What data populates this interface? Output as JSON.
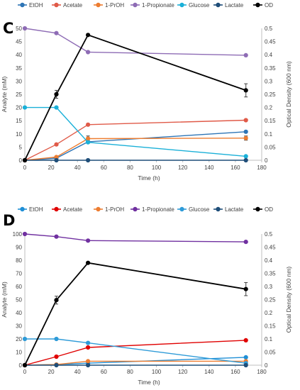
{
  "chart_data": [
    {
      "type": "line",
      "panel_label": "C",
      "xlabel": "Time (h)",
      "ylabel": "Analyte (mM)",
      "y2label": "Optical Density (600 nm)",
      "x_ticks": [
        0,
        20,
        40,
        60,
        80,
        100,
        120,
        140,
        160,
        180
      ],
      "y_ticks": [
        0,
        5,
        10,
        15,
        20,
        25,
        30,
        35,
        40,
        45,
        50
      ],
      "y2_ticks": [
        "0",
        "0.05",
        "0.1",
        "0.15",
        "0.2",
        "0.25",
        "0.3",
        "0.35",
        "0.4",
        "0.45",
        "0.5"
      ],
      "xlim": [
        0,
        180
      ],
      "ylim": [
        0,
        50
      ],
      "y2lim": [
        0,
        0.5
      ],
      "legend_position": "top",
      "series": [
        {
          "name": "EtOH",
          "color": "#2e75b6",
          "axis": "left",
          "x": [
            0,
            24,
            48,
            168
          ],
          "y": [
            0,
            0.8,
            7.0,
            10.8
          ],
          "err": [
            0,
            0,
            0,
            0
          ]
        },
        {
          "name": "Acetate",
          "color": "#e05a48",
          "axis": "left",
          "x": [
            0,
            24,
            48,
            168
          ],
          "y": [
            0,
            6.0,
            13.5,
            15.2
          ],
          "err": [
            0,
            0,
            0,
            0
          ]
        },
        {
          "name": "1-PrOH",
          "color": "#ed7d31",
          "axis": "left",
          "x": [
            0,
            24,
            48,
            168
          ],
          "y": [
            0,
            1.2,
            8.2,
            8.4
          ],
          "err": [
            0,
            0,
            1.0,
            0.8
          ]
        },
        {
          "name": "1-Propionate",
          "color": "#8e6cb5",
          "axis": "left",
          "x": [
            0,
            24,
            48,
            168
          ],
          "y": [
            50.0,
            48.2,
            41.0,
            39.8
          ],
          "err": [
            0,
            0,
            0,
            0
          ]
        },
        {
          "name": "Glucose",
          "color": "#1ab0d8",
          "axis": "left",
          "x": [
            0,
            24,
            48,
            168
          ],
          "y": [
            20.0,
            20.0,
            6.8,
            1.5
          ],
          "err": [
            0,
            0,
            0,
            0
          ]
        },
        {
          "name": "Lactate",
          "color": "#1f4e79",
          "axis": "left",
          "x": [
            0,
            24,
            48,
            168
          ],
          "y": [
            0,
            0,
            0,
            0
          ],
          "err": [
            0,
            0,
            0,
            0
          ]
        },
        {
          "name": "OD",
          "color": "#000000",
          "axis": "right",
          "x": [
            0,
            24,
            48,
            168
          ],
          "y": [
            0,
            0.25,
            0.475,
            0.265
          ],
          "err": [
            0,
            0.015,
            0,
            0.025
          ]
        }
      ]
    },
    {
      "type": "line",
      "panel_label": "D",
      "xlabel": "Time (h)",
      "ylabel": "Analyte (mM)",
      "y2label": "Optical Density (600 nm)",
      "x_ticks": [
        0,
        20,
        40,
        60,
        80,
        100,
        120,
        140,
        160,
        180
      ],
      "y_ticks": [
        0,
        10,
        20,
        30,
        40,
        50,
        60,
        70,
        80,
        90,
        100
      ],
      "y2_ticks": [
        "0",
        "0.05",
        "0.1",
        "0.15",
        "0.2",
        "0.25",
        "0.3",
        "0.35",
        "0.4",
        "0.45",
        "0.5"
      ],
      "xlim": [
        0,
        180
      ],
      "ylim": [
        0,
        100
      ],
      "y2lim": [
        0,
        0.5
      ],
      "legend_position": "top",
      "series": [
        {
          "name": "EtOH",
          "color": "#1f8fd6",
          "axis": "left",
          "x": [
            0,
            24,
            48,
            168
          ],
          "y": [
            0,
            0.5,
            1.5,
            6.0
          ],
          "err": [
            0,
            0,
            0,
            0
          ]
        },
        {
          "name": "Acetate",
          "color": "#e00000",
          "axis": "left",
          "x": [
            0,
            24,
            48,
            168
          ],
          "y": [
            0,
            6.5,
            13.5,
            19.0
          ],
          "err": [
            0,
            0,
            0,
            0
          ]
        },
        {
          "name": "1-PrOH",
          "color": "#ed7d31",
          "axis": "left",
          "x": [
            0,
            24,
            48,
            168
          ],
          "y": [
            0,
            0.5,
            3.0,
            3.0
          ],
          "err": [
            0,
            0,
            0,
            0
          ]
        },
        {
          "name": "1-Propionate",
          "color": "#7030a0",
          "axis": "left",
          "x": [
            0,
            24,
            48,
            168
          ],
          "y": [
            100.0,
            98.0,
            95.0,
            94.0
          ],
          "err": [
            0,
            0,
            0,
            0
          ]
        },
        {
          "name": "Glucose",
          "color": "#2e9bd8",
          "axis": "left",
          "x": [
            0,
            24,
            48,
            168
          ],
          "y": [
            20.0,
            20.0,
            17.0,
            1.5
          ],
          "err": [
            0,
            0,
            0,
            0
          ]
        },
        {
          "name": "Lactate",
          "color": "#1f4e79",
          "axis": "left",
          "x": [
            0,
            24,
            48,
            168
          ],
          "y": [
            0,
            0,
            0,
            0
          ],
          "err": [
            0,
            0,
            0,
            0
          ]
        },
        {
          "name": "OD",
          "color": "#000000",
          "axis": "right",
          "x": [
            0,
            24,
            48,
            168
          ],
          "y": [
            0,
            0.248,
            0.39,
            0.29
          ],
          "err": [
            0,
            0.015,
            0,
            0.025
          ]
        }
      ]
    }
  ]
}
